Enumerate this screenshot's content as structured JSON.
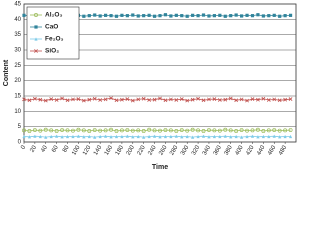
{
  "chart_data": {
    "type": "line",
    "xlabel": "Time",
    "ylabel": "Content",
    "x": [
      0,
      10,
      20,
      30,
      40,
      50,
      60,
      70,
      80,
      90,
      100,
      110,
      120,
      130,
      140,
      150,
      160,
      170,
      180,
      190,
      200,
      210,
      220,
      230,
      240,
      250,
      260,
      270,
      280,
      290,
      300,
      310,
      320,
      330,
      340,
      350,
      360,
      370,
      380,
      390,
      400,
      410,
      420,
      430,
      440,
      450,
      460,
      470,
      480,
      490
    ],
    "xlim": [
      0,
      500
    ],
    "xticks": [
      0,
      20,
      40,
      60,
      80,
      100,
      120,
      140,
      160,
      180,
      200,
      220,
      240,
      260,
      280,
      300,
      320,
      340,
      360,
      380,
      400,
      420,
      440,
      460,
      480
    ],
    "ylim": [
      0,
      45
    ],
    "yticks": [
      0,
      5,
      10,
      15,
      20,
      25,
      30,
      35,
      40,
      45
    ],
    "grid": true,
    "legend": "upper left",
    "series": [
      {
        "name": "Al₂O₃",
        "color": "#9bbb59",
        "marker": "circle",
        "values": [
          3.8,
          3.6,
          3.9,
          3.7,
          4.0,
          3.8,
          3.6,
          3.9,
          3.8,
          3.7,
          4.0,
          3.8,
          3.6,
          3.9,
          3.7,
          3.8,
          4.0,
          3.6,
          3.8,
          3.9,
          3.7,
          3.8,
          3.6,
          4.0,
          3.8,
          3.7,
          3.9,
          3.8,
          3.6,
          3.9,
          3.7,
          4.0,
          3.8,
          3.6,
          3.9,
          3.8,
          3.7,
          4.0,
          3.8,
          3.6,
          3.9,
          3.7,
          3.8,
          4.0,
          3.6,
          3.8,
          3.9,
          3.7,
          3.8,
          3.9
        ]
      },
      {
        "name": "CaO",
        "color": "#31849b",
        "marker": "square",
        "values": [
          41.3,
          41.1,
          41.4,
          41.2,
          41.0,
          41.3,
          41.2,
          41.5,
          41.1,
          41.2,
          41.3,
          41.0,
          41.2,
          41.4,
          41.1,
          41.3,
          41.2,
          41.0,
          41.3,
          41.2,
          41.4,
          41.1,
          41.2,
          41.3,
          41.0,
          41.2,
          41.5,
          41.1,
          41.3,
          41.2,
          41.0,
          41.3,
          41.2,
          41.4,
          41.1,
          41.2,
          41.3,
          41.0,
          41.2,
          41.4,
          41.1,
          41.3,
          41.2,
          41.5,
          41.1,
          41.2,
          41.3,
          41.0,
          41.2,
          41.3
        ]
      },
      {
        "name": "Fe₂O₃",
        "color": "#7ecbe8",
        "marker": "triangle",
        "values": [
          1.8,
          1.7,
          1.9,
          1.8,
          1.6,
          1.8,
          1.9,
          1.7,
          1.8,
          1.8,
          1.9,
          1.7,
          1.8,
          1.6,
          1.8,
          1.9,
          1.7,
          1.8,
          1.8,
          1.9,
          1.7,
          1.8,
          1.6,
          1.8,
          1.9,
          1.7,
          1.8,
          1.8,
          1.9,
          1.7,
          1.8,
          1.6,
          1.8,
          1.9,
          1.7,
          1.8,
          1.8,
          1.9,
          1.7,
          1.8,
          1.6,
          1.8,
          1.9,
          1.7,
          1.8,
          1.8,
          1.9,
          1.7,
          1.8,
          1.8
        ]
      },
      {
        "name": "SiO₂",
        "color": "#c0504d",
        "marker": "x",
        "values": [
          13.9,
          13.6,
          14.1,
          13.8,
          13.5,
          14.0,
          13.7,
          14.2,
          13.6,
          13.9,
          14.0,
          13.5,
          13.8,
          14.1,
          13.7,
          13.9,
          14.3,
          13.6,
          13.8,
          14.0,
          13.5,
          13.9,
          14.1,
          13.7,
          13.8,
          14.2,
          13.6,
          13.9,
          13.7,
          14.0,
          13.5,
          13.8,
          14.1,
          13.6,
          13.9,
          14.0,
          13.7,
          13.8,
          14.2,
          13.6,
          13.9,
          13.5,
          14.0,
          13.8,
          14.1,
          13.7,
          13.9,
          13.6,
          13.8,
          14.0
        ]
      }
    ]
  }
}
